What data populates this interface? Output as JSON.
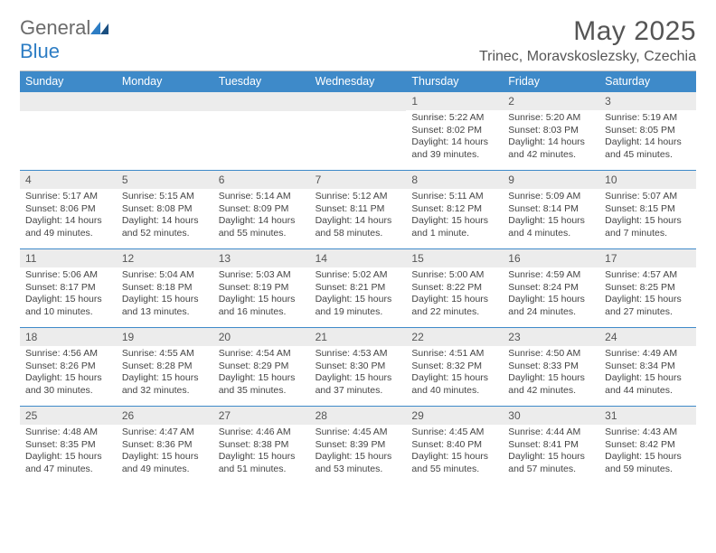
{
  "logo": {
    "word1": "General",
    "word2": "Blue"
  },
  "title": "May 2025",
  "location": "Trinec, Moravskoslezsky, Czechia",
  "colors": {
    "header_bg": "#3e8ac9",
    "header_text": "#ffffff",
    "daynum_bg": "#ececec",
    "row_border": "#3e8ac9",
    "text": "#444444",
    "title_text": "#555555"
  },
  "weekdays": [
    "Sunday",
    "Monday",
    "Tuesday",
    "Wednesday",
    "Thursday",
    "Friday",
    "Saturday"
  ],
  "weeks": [
    [
      {
        "d": ""
      },
      {
        "d": ""
      },
      {
        "d": ""
      },
      {
        "d": ""
      },
      {
        "d": "1",
        "sr": "Sunrise: 5:22 AM",
        "ss": "Sunset: 8:02 PM",
        "dl": "Daylight: 14 hours and 39 minutes."
      },
      {
        "d": "2",
        "sr": "Sunrise: 5:20 AM",
        "ss": "Sunset: 8:03 PM",
        "dl": "Daylight: 14 hours and 42 minutes."
      },
      {
        "d": "3",
        "sr": "Sunrise: 5:19 AM",
        "ss": "Sunset: 8:05 PM",
        "dl": "Daylight: 14 hours and 45 minutes."
      }
    ],
    [
      {
        "d": "4",
        "sr": "Sunrise: 5:17 AM",
        "ss": "Sunset: 8:06 PM",
        "dl": "Daylight: 14 hours and 49 minutes."
      },
      {
        "d": "5",
        "sr": "Sunrise: 5:15 AM",
        "ss": "Sunset: 8:08 PM",
        "dl": "Daylight: 14 hours and 52 minutes."
      },
      {
        "d": "6",
        "sr": "Sunrise: 5:14 AM",
        "ss": "Sunset: 8:09 PM",
        "dl": "Daylight: 14 hours and 55 minutes."
      },
      {
        "d": "7",
        "sr": "Sunrise: 5:12 AM",
        "ss": "Sunset: 8:11 PM",
        "dl": "Daylight: 14 hours and 58 minutes."
      },
      {
        "d": "8",
        "sr": "Sunrise: 5:11 AM",
        "ss": "Sunset: 8:12 PM",
        "dl": "Daylight: 15 hours and 1 minute."
      },
      {
        "d": "9",
        "sr": "Sunrise: 5:09 AM",
        "ss": "Sunset: 8:14 PM",
        "dl": "Daylight: 15 hours and 4 minutes."
      },
      {
        "d": "10",
        "sr": "Sunrise: 5:07 AM",
        "ss": "Sunset: 8:15 PM",
        "dl": "Daylight: 15 hours and 7 minutes."
      }
    ],
    [
      {
        "d": "11",
        "sr": "Sunrise: 5:06 AM",
        "ss": "Sunset: 8:17 PM",
        "dl": "Daylight: 15 hours and 10 minutes."
      },
      {
        "d": "12",
        "sr": "Sunrise: 5:04 AM",
        "ss": "Sunset: 8:18 PM",
        "dl": "Daylight: 15 hours and 13 minutes."
      },
      {
        "d": "13",
        "sr": "Sunrise: 5:03 AM",
        "ss": "Sunset: 8:19 PM",
        "dl": "Daylight: 15 hours and 16 minutes."
      },
      {
        "d": "14",
        "sr": "Sunrise: 5:02 AM",
        "ss": "Sunset: 8:21 PM",
        "dl": "Daylight: 15 hours and 19 minutes."
      },
      {
        "d": "15",
        "sr": "Sunrise: 5:00 AM",
        "ss": "Sunset: 8:22 PM",
        "dl": "Daylight: 15 hours and 22 minutes."
      },
      {
        "d": "16",
        "sr": "Sunrise: 4:59 AM",
        "ss": "Sunset: 8:24 PM",
        "dl": "Daylight: 15 hours and 24 minutes."
      },
      {
        "d": "17",
        "sr": "Sunrise: 4:57 AM",
        "ss": "Sunset: 8:25 PM",
        "dl": "Daylight: 15 hours and 27 minutes."
      }
    ],
    [
      {
        "d": "18",
        "sr": "Sunrise: 4:56 AM",
        "ss": "Sunset: 8:26 PM",
        "dl": "Daylight: 15 hours and 30 minutes."
      },
      {
        "d": "19",
        "sr": "Sunrise: 4:55 AM",
        "ss": "Sunset: 8:28 PM",
        "dl": "Daylight: 15 hours and 32 minutes."
      },
      {
        "d": "20",
        "sr": "Sunrise: 4:54 AM",
        "ss": "Sunset: 8:29 PM",
        "dl": "Daylight: 15 hours and 35 minutes."
      },
      {
        "d": "21",
        "sr": "Sunrise: 4:53 AM",
        "ss": "Sunset: 8:30 PM",
        "dl": "Daylight: 15 hours and 37 minutes."
      },
      {
        "d": "22",
        "sr": "Sunrise: 4:51 AM",
        "ss": "Sunset: 8:32 PM",
        "dl": "Daylight: 15 hours and 40 minutes."
      },
      {
        "d": "23",
        "sr": "Sunrise: 4:50 AM",
        "ss": "Sunset: 8:33 PM",
        "dl": "Daylight: 15 hours and 42 minutes."
      },
      {
        "d": "24",
        "sr": "Sunrise: 4:49 AM",
        "ss": "Sunset: 8:34 PM",
        "dl": "Daylight: 15 hours and 44 minutes."
      }
    ],
    [
      {
        "d": "25",
        "sr": "Sunrise: 4:48 AM",
        "ss": "Sunset: 8:35 PM",
        "dl": "Daylight: 15 hours and 47 minutes."
      },
      {
        "d": "26",
        "sr": "Sunrise: 4:47 AM",
        "ss": "Sunset: 8:36 PM",
        "dl": "Daylight: 15 hours and 49 minutes."
      },
      {
        "d": "27",
        "sr": "Sunrise: 4:46 AM",
        "ss": "Sunset: 8:38 PM",
        "dl": "Daylight: 15 hours and 51 minutes."
      },
      {
        "d": "28",
        "sr": "Sunrise: 4:45 AM",
        "ss": "Sunset: 8:39 PM",
        "dl": "Daylight: 15 hours and 53 minutes."
      },
      {
        "d": "29",
        "sr": "Sunrise: 4:45 AM",
        "ss": "Sunset: 8:40 PM",
        "dl": "Daylight: 15 hours and 55 minutes."
      },
      {
        "d": "30",
        "sr": "Sunrise: 4:44 AM",
        "ss": "Sunset: 8:41 PM",
        "dl": "Daylight: 15 hours and 57 minutes."
      },
      {
        "d": "31",
        "sr": "Sunrise: 4:43 AM",
        "ss": "Sunset: 8:42 PM",
        "dl": "Daylight: 15 hours and 59 minutes."
      }
    ]
  ]
}
